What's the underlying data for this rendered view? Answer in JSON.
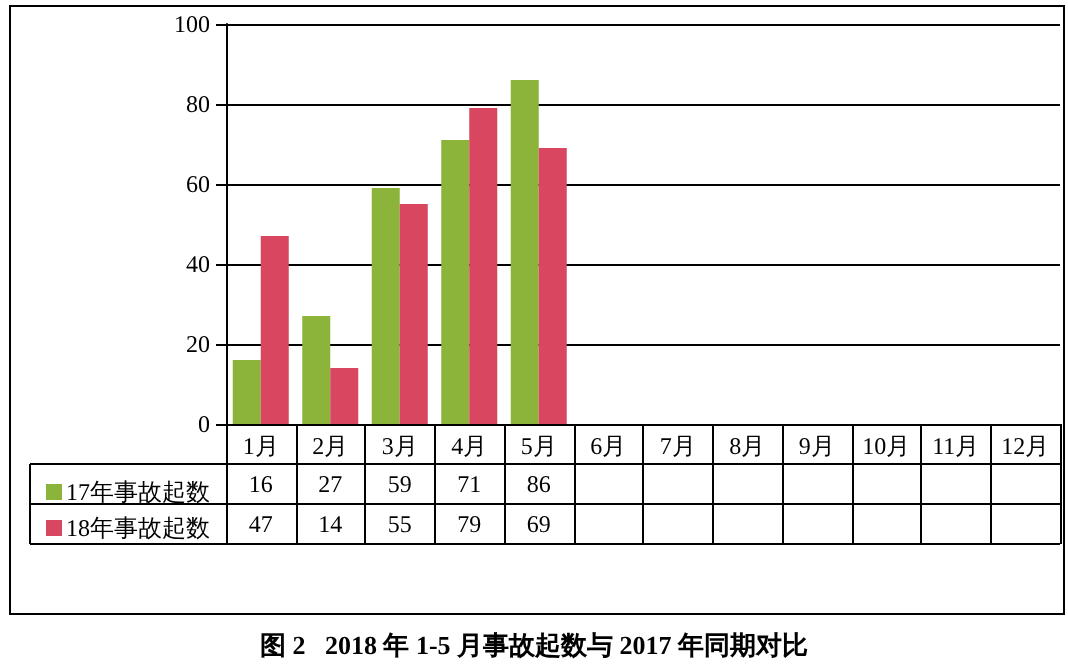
{
  "chart_data": {
    "type": "bar",
    "title": "图 2   2018 年 1-5 月事故起数与 2017 年同期对比",
    "categories": [
      "1月",
      "2月",
      "3月",
      "4月",
      "5月",
      "6月",
      "7月",
      "8月",
      "9月",
      "10月",
      "11月",
      "12月"
    ],
    "series": [
      {
        "name": "17年事故起数",
        "color": "#8cb33a",
        "values": [
          16,
          27,
          59,
          71,
          86,
          null,
          null,
          null,
          null,
          null,
          null,
          null
        ]
      },
      {
        "name": "18年事故起数",
        "color": "#d9465f",
        "values": [
          47,
          14,
          55,
          79,
          69,
          null,
          null,
          null,
          null,
          null,
          null,
          null
        ]
      }
    ],
    "ylim": [
      0,
      100
    ],
    "yticks": [
      0,
      20,
      40,
      60,
      80,
      100
    ],
    "grid": "y",
    "legend": "bottom left",
    "data_labels": true
  }
}
